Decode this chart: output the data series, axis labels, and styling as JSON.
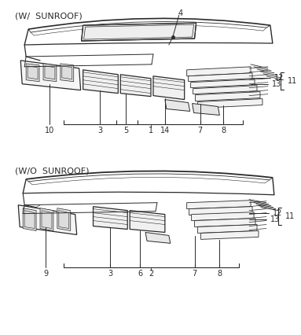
{
  "background_color": "#ffffff",
  "line_color": "#2a2a2a",
  "text_color": "#2a2a2a",
  "section1_label": "(W/  SUNROOF)",
  "section2_label": "(W/O  SUNROOF)",
  "fig_width": 3.83,
  "fig_height": 4.26,
  "dpi": 100
}
